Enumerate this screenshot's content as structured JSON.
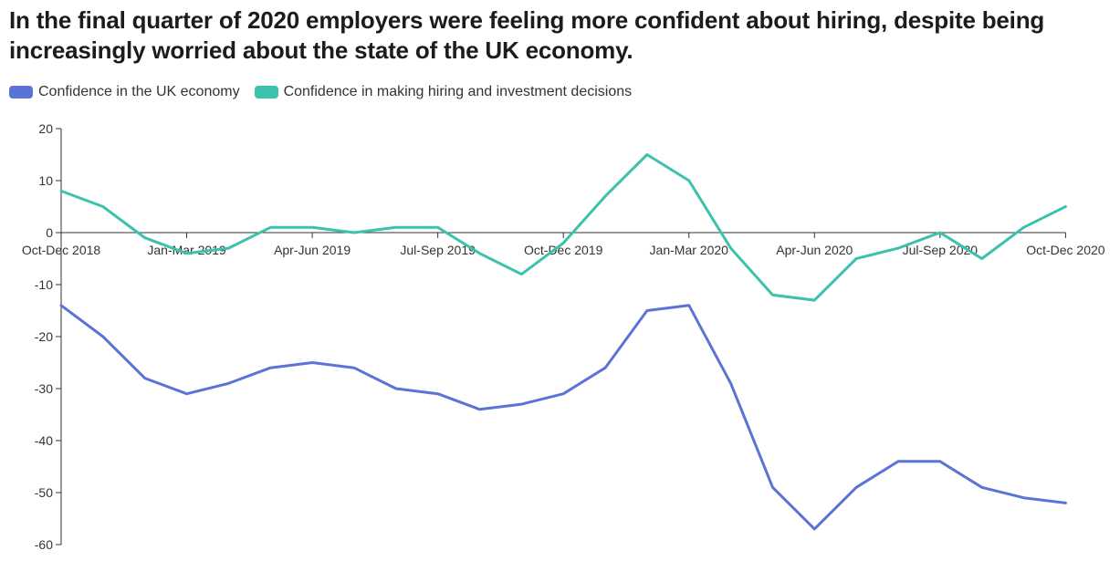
{
  "title": "In the final quarter of 2020 employers were feeling more confident about hiring, despite being increasingly worried about the state of the UK economy.",
  "chart_data": {
    "type": "line",
    "title": "In the final quarter of 2020 employers were feeling more confident about hiring, despite being increasingly worried about the state of the UK economy.",
    "ylim": [
      -60,
      20
    ],
    "yticks": [
      20,
      10,
      0,
      -10,
      -20,
      -30,
      -40,
      -50,
      -60
    ],
    "x_tick_labels": [
      "Oct-Dec 2018",
      "Jan-Mar 2019",
      "Apr-Jun 2019",
      "Jul-Sep 2019",
      "Oct-Dec 2019",
      "Jan-Mar 2020",
      "Apr-Jun 2020",
      "Jul-Sep 2020",
      "Oct-Dec 2020"
    ],
    "grid": false,
    "legend_position": "top-left",
    "series": [
      {
        "name": "Confidence in the UK economy",
        "color": "#5b73d6",
        "values": [
          -14,
          -20,
          -28,
          -31,
          -29,
          -26,
          -25,
          -26,
          -30,
          -31,
          -34,
          -33,
          -31,
          -26,
          -15,
          -14,
          -29,
          -49,
          -57,
          -49,
          -44,
          -44,
          -49,
          -51,
          -52
        ]
      },
      {
        "name": "Confidence in making hiring and investment decisions",
        "color": "#3cc1ad",
        "values": [
          8,
          5,
          -1,
          -4,
          -3,
          1,
          1,
          0,
          1,
          1,
          -4,
          -8,
          -2,
          7,
          15,
          10,
          -3,
          -12,
          -13,
          -5,
          -3,
          0,
          -5,
          1,
          5
        ]
      }
    ]
  }
}
